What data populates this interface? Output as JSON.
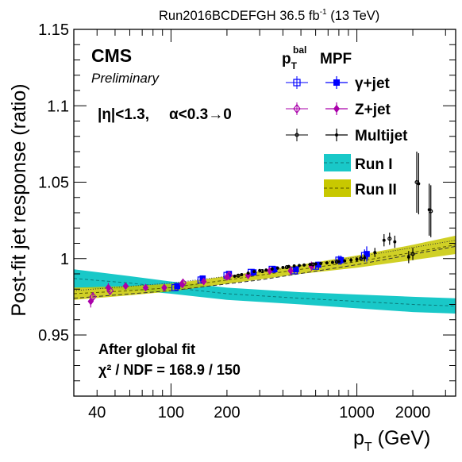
{
  "header": {
    "run_label": "Run2016BCDEFGH 36.5 fb",
    "run_sup": "-1",
    "run_energy": "(13 TeV)"
  },
  "logo": {
    "cms": "CMS",
    "preliminary": "Preliminary"
  },
  "selection": {
    "eta": "|η|<1.3,",
    "alpha": "α<0.3→0"
  },
  "fit_box": {
    "title": "After global fit",
    "chi2": "χ² / NDF = 168.9 / 150"
  },
  "legend": {
    "header_pt": "p",
    "header_pt_sub": "T",
    "header_pt_sup": "bal",
    "header_mpf": "MPF",
    "entries": [
      {
        "label": "γ+jet",
        "color": "#0000ff",
        "open": "square-open",
        "filled": "square"
      },
      {
        "label": "Z+jet",
        "color": "#aa00aa",
        "open": "diamond-open",
        "filled": "diamond"
      },
      {
        "label": "Multijet",
        "color": "#000000",
        "open": "circle-open",
        "filled": "circle"
      },
      {
        "label": "Run I",
        "color": "#19c8c8",
        "band": true
      },
      {
        "label": "Run II",
        "color": "#c8c800",
        "band": true
      }
    ]
  },
  "chart_data": {
    "type": "scatter",
    "xlabel": "p",
    "xlabel_sub": "T",
    "xlabel_unit": "(GeV)",
    "ylabel": "Post-fit jet response (ratio)",
    "xlog": true,
    "xlim": [
      30,
      3400
    ],
    "ylim": [
      0.91,
      1.15
    ],
    "x_tick_labels": [
      "40",
      "100",
      "200",
      "1000",
      "2000"
    ],
    "x_tick_values": [
      40,
      100,
      200,
      1000,
      2000
    ],
    "y_tick_labels": [
      "0.95",
      "1",
      "1.05",
      "1.1",
      "1.15"
    ],
    "y_tick_values": [
      0.95,
      1.0,
      1.05,
      1.1,
      1.15
    ],
    "grid": false,
    "bands": [
      {
        "name": "Run I",
        "color": "#19c8c8",
        "x": [
          30,
          60,
          100,
          200,
          500,
          1000,
          2000,
          3400
        ],
        "center": [
          0.987,
          0.984,
          0.981,
          0.977,
          0.974,
          0.972,
          0.97,
          0.969
        ],
        "halfwidth": [
          0.006,
          0.0045,
          0.004,
          0.004,
          0.004,
          0.0045,
          0.005,
          0.005
        ]
      },
      {
        "name": "Run II",
        "color": "#c8c800",
        "x": [
          30,
          60,
          100,
          200,
          500,
          1000,
          2000,
          3400
        ],
        "center": [
          0.977,
          0.979,
          0.981,
          0.986,
          0.993,
          0.998,
          1.004,
          1.009
        ],
        "halfwidth": [
          0.004,
          0.003,
          0.0025,
          0.0025,
          0.003,
          0.004,
          0.005,
          0.006
        ]
      }
    ],
    "fit_lines": [
      {
        "name": "Run II fit",
        "x": [
          30,
          100,
          300,
          1000,
          3400
        ],
        "y": [
          0.979,
          0.984,
          0.991,
          1.001,
          1.012
        ]
      },
      {
        "name": "Run II fit (alt)",
        "x": [
          30,
          100,
          300,
          1000,
          3400
        ],
        "y": [
          0.974,
          0.979,
          0.986,
          0.996,
          1.008
        ]
      }
    ],
    "series": [
      {
        "name": "γ+jet",
        "color": "#0000ff",
        "marker": "square",
        "points": [
          {
            "x": 105,
            "y": 0.981,
            "err": 0.002,
            "open": true
          },
          {
            "x": 145,
            "y": 0.986,
            "err": 0.002,
            "open": true
          },
          {
            "x": 200,
            "y": 0.989,
            "err": 0.002,
            "open": true
          },
          {
            "x": 270,
            "y": 0.991,
            "err": 0.002,
            "open": true
          },
          {
            "x": 350,
            "y": 0.993,
            "err": 0.002,
            "open": true
          },
          {
            "x": 460,
            "y": 0.992,
            "err": 0.002,
            "open": true
          },
          {
            "x": 600,
            "y": 0.995,
            "err": 0.002,
            "open": true
          },
          {
            "x": 800,
            "y": 0.999,
            "err": 0.003,
            "open": true
          },
          {
            "x": 1100,
            "y": 1.002,
            "err": 0.004,
            "open": true
          },
          {
            "x": 108,
            "y": 0.982,
            "err": 0.002
          },
          {
            "x": 148,
            "y": 0.987,
            "err": 0.002
          },
          {
            "x": 205,
            "y": 0.99,
            "err": 0.002
          },
          {
            "x": 278,
            "y": 0.991,
            "err": 0.002
          },
          {
            "x": 360,
            "y": 0.993,
            "err": 0.002
          },
          {
            "x": 470,
            "y": 0.993,
            "err": 0.002
          },
          {
            "x": 620,
            "y": 0.996,
            "err": 0.002
          },
          {
            "x": 820,
            "y": 0.999,
            "err": 0.003
          },
          {
            "x": 1130,
            "y": 1.003,
            "err": 0.005
          }
        ]
      },
      {
        "name": "Z+jet",
        "color": "#aa00aa",
        "marker": "diamond",
        "points": [
          {
            "x": 37,
            "y": 0.972,
            "err": 0.004
          },
          {
            "x": 46,
            "y": 0.981,
            "err": 0.003
          },
          {
            "x": 57,
            "y": 0.982,
            "err": 0.002
          },
          {
            "x": 73,
            "y": 0.981,
            "err": 0.002
          },
          {
            "x": 92,
            "y": 0.981,
            "err": 0.002
          },
          {
            "x": 115,
            "y": 0.983,
            "err": 0.002
          },
          {
            "x": 150,
            "y": 0.985,
            "err": 0.002
          },
          {
            "x": 200,
            "y": 0.988,
            "err": 0.002
          },
          {
            "x": 260,
            "y": 0.989,
            "err": 0.002
          },
          {
            "x": 340,
            "y": 0.992,
            "err": 0.002
          },
          {
            "x": 440,
            "y": 0.992,
            "err": 0.003
          },
          {
            "x": 570,
            "y": 0.995,
            "err": 0.003
          },
          {
            "x": 38,
            "y": 0.975,
            "err": 0.003,
            "open": true
          },
          {
            "x": 47,
            "y": 0.979,
            "err": 0.002,
            "open": true
          },
          {
            "x": 116,
            "y": 0.984,
            "err": 0.002,
            "open": true
          },
          {
            "x": 205,
            "y": 0.989,
            "err": 0.002,
            "open": true
          }
        ]
      },
      {
        "name": "Multijet",
        "color": "#000000",
        "marker": "circle",
        "points": [
          {
            "x": 220,
            "y": 0.9885,
            "err": 0.001
          },
          {
            "x": 240,
            "y": 0.9895,
            "err": 0.001
          },
          {
            "x": 260,
            "y": 0.9905,
            "err": 0.001
          },
          {
            "x": 280,
            "y": 0.9915,
            "err": 0.001
          },
          {
            "x": 300,
            "y": 0.9922,
            "err": 0.001
          },
          {
            "x": 325,
            "y": 0.9925,
            "err": 0.001
          },
          {
            "x": 350,
            "y": 0.9932,
            "err": 0.001
          },
          {
            "x": 375,
            "y": 0.9938,
            "err": 0.001
          },
          {
            "x": 400,
            "y": 0.9942,
            "err": 0.001
          },
          {
            "x": 430,
            "y": 0.9948,
            "err": 0.001
          },
          {
            "x": 460,
            "y": 0.9952,
            "err": 0.001
          },
          {
            "x": 490,
            "y": 0.9955,
            "err": 0.001
          },
          {
            "x": 520,
            "y": 0.9958,
            "err": 0.001
          },
          {
            "x": 560,
            "y": 0.9962,
            "err": 0.001
          },
          {
            "x": 600,
            "y": 0.9965,
            "err": 0.001
          },
          {
            "x": 640,
            "y": 0.9968,
            "err": 0.001
          },
          {
            "x": 690,
            "y": 0.9972,
            "err": 0.001
          },
          {
            "x": 740,
            "y": 0.9975,
            "err": 0.001
          },
          {
            "x": 800,
            "y": 0.998,
            "err": 0.001
          },
          {
            "x": 860,
            "y": 0.9985,
            "err": 0.001
          },
          {
            "x": 930,
            "y": 0.999,
            "err": 0.0015
          },
          {
            "x": 1000,
            "y": 0.9995,
            "err": 0.0015
          },
          {
            "x": 1100,
            "y": 1.0005,
            "err": 0.002
          },
          {
            "x": 1250,
            "y": 1.004,
            "err": 0.003
          },
          {
            "x": 1400,
            "y": 1.012,
            "err": 0.004
          },
          {
            "x": 1600,
            "y": 1.011,
            "err": 0.004
          },
          {
            "x": 1900,
            "y": 1.001,
            "err": 0.004
          },
          {
            "x": 2150,
            "y": 1.049,
            "err": 0.02
          },
          {
            "x": 2450,
            "y": 1.032,
            "err": 0.017
          },
          {
            "x": 230,
            "y": 0.9888,
            "err": 0.001,
            "open": true
          },
          {
            "x": 310,
            "y": 0.9918,
            "err": 0.001,
            "open": true
          },
          {
            "x": 420,
            "y": 0.9944,
            "err": 0.001,
            "open": true
          },
          {
            "x": 580,
            "y": 0.9962,
            "err": 0.001,
            "open": true
          },
          {
            "x": 780,
            "y": 0.9978,
            "err": 0.001,
            "open": true
          },
          {
            "x": 1050,
            "y": 1.0,
            "err": 0.0015,
            "open": true
          },
          {
            "x": 1500,
            "y": 1.013,
            "err": 0.004,
            "open": true
          },
          {
            "x": 2000,
            "y": 1.003,
            "err": 0.004,
            "open": true
          },
          {
            "x": 2100,
            "y": 1.05,
            "err": 0.02,
            "open": true
          },
          {
            "x": 2500,
            "y": 1.031,
            "err": 0.017,
            "open": true
          }
        ]
      }
    ]
  }
}
